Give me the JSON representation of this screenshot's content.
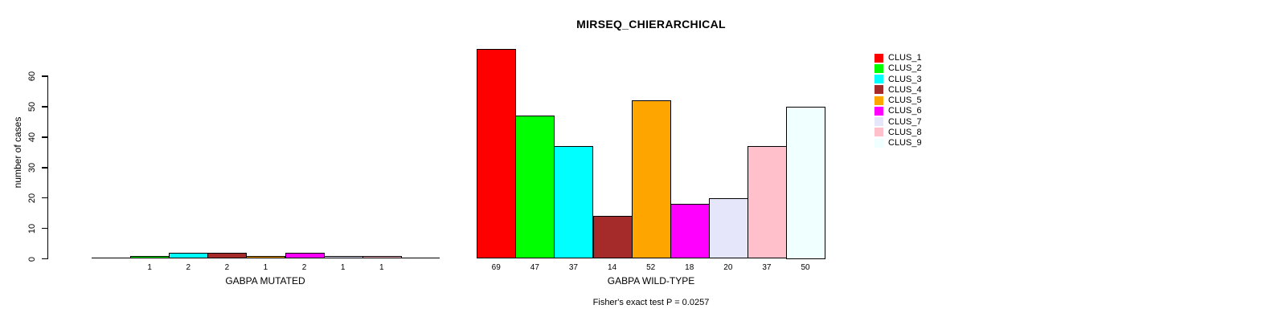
{
  "title": "MIRSEQ_CHIERARCHICAL",
  "y_axis": {
    "label": "number of cases",
    "tick_values": [
      0,
      10,
      20,
      30,
      40,
      50,
      60
    ]
  },
  "legend": {
    "items": [
      {
        "label": "CLUS_1",
        "color": "#FF0000"
      },
      {
        "label": "CLUS_2",
        "color": "#00FF00"
      },
      {
        "label": "CLUS_3",
        "color": "#00FFFF"
      },
      {
        "label": "CLUS_4",
        "color": "#A52A2A"
      },
      {
        "label": "CLUS_5",
        "color": "#FFA500"
      },
      {
        "label": "CLUS_6",
        "color": "#FF00FF"
      },
      {
        "label": "CLUS_7",
        "color": "#E6E6FA"
      },
      {
        "label": "CLUS_8",
        "color": "#FFC0CB"
      },
      {
        "label": "CLUS_9",
        "color": "#F0FFFF"
      }
    ]
  },
  "chart_data": {
    "type": "bar",
    "title": "MIRSEQ_CHIERARCHICAL",
    "ylabel": "number of cases",
    "ylim": [
      0,
      69
    ],
    "yticks": [
      0,
      10,
      20,
      30,
      40,
      50,
      60
    ],
    "grid": false,
    "legend_position": "right",
    "categories": [
      "CLUS_1",
      "CLUS_2",
      "CLUS_3",
      "CLUS_4",
      "CLUS_5",
      "CLUS_6",
      "CLUS_7",
      "CLUS_8",
      "CLUS_9"
    ],
    "colors": [
      "#FF0000",
      "#00FF00",
      "#00FFFF",
      "#A52A2A",
      "#FFA500",
      "#FF00FF",
      "#E6E6FA",
      "#FFC0CB",
      "#F0FFFF"
    ],
    "groups": [
      {
        "xlabel": "GABPA MUTATED",
        "values": [
          0,
          1,
          2,
          2,
          1,
          2,
          1,
          1,
          0
        ]
      },
      {
        "xlabel": "GABPA WILD-TYPE",
        "values": [
          69,
          47,
          37,
          14,
          52,
          18,
          20,
          37,
          50
        ]
      }
    ],
    "bar_value_labels_shown_only_when_nonzero": true,
    "annotation": "Fisher's exact test P = 0.0257"
  }
}
